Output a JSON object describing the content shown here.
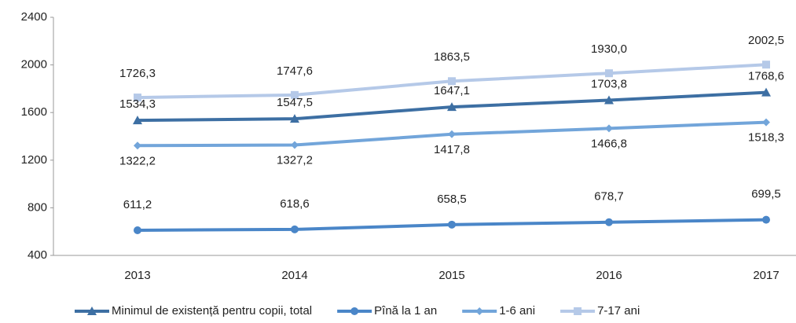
{
  "chart_data": {
    "type": "line",
    "categories": [
      "2013",
      "2014",
      "2015",
      "2016",
      "2017"
    ],
    "ylim": [
      400,
      2400
    ],
    "yticks": [
      400,
      800,
      1200,
      1600,
      2000,
      2400
    ],
    "legend": "bottom",
    "series": [
      {
        "name": "Minimul de existență pentru copii, total",
        "color": "#3d6fa3",
        "marker": "triangle",
        "values": [
          1534.3,
          1547.5,
          1647.1,
          1703.8,
          1768.6
        ],
        "value_labels": [
          "1534,3",
          "1547,5",
          "1647,1",
          "1703,8",
          "1768,6"
        ]
      },
      {
        "name": "Pînă la 1 an",
        "color": "#4a86c8",
        "marker": "circle",
        "values": [
          611.2,
          618.6,
          658.5,
          678.7,
          699.5
        ],
        "value_labels": [
          "611,2",
          "618,6",
          "658,5",
          "678,7",
          "699,5"
        ]
      },
      {
        "name": "1-6 ani",
        "color": "#72a5da",
        "marker": "diamond",
        "values": [
          1322.2,
          1327.2,
          1417.8,
          1466.8,
          1518.3
        ],
        "value_labels": [
          "1322,2",
          "1327,2",
          "1417,8",
          "1466,8",
          "1518,3"
        ]
      },
      {
        "name": "7-17 ani",
        "color": "#b5c9e8",
        "marker": "square",
        "values": [
          1726.3,
          1747.6,
          1863.5,
          1930.0,
          2002.5
        ],
        "value_labels": [
          "1726,3",
          "1747,6",
          "1863,5",
          "1930,0",
          "2002,5"
        ]
      }
    ]
  }
}
